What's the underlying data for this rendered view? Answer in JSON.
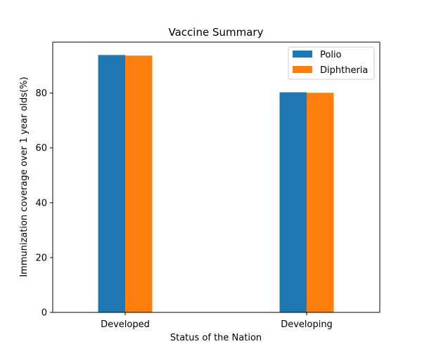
{
  "chart_data": {
    "type": "bar",
    "title": "Vaccine Summary",
    "xlabel": "Status of the Nation",
    "ylabel": "Immunization coverage over 1 year olds(%)",
    "categories": [
      "Developed",
      "Developing"
    ],
    "series": [
      {
        "name": "Polio",
        "color": "#1f77b4",
        "values": [
          93.9,
          80.3
        ]
      },
      {
        "name": "Diphtheria",
        "color": "#ff7f0e",
        "values": [
          93.7,
          80.1
        ]
      }
    ],
    "ylim": [
      0,
      98.6
    ],
    "yticks": [
      0,
      20,
      40,
      60,
      80
    ],
    "ytick_labels": [
      "0",
      "20",
      "40",
      "60",
      "80"
    ],
    "legend_position": "top-right",
    "grid": false
  }
}
